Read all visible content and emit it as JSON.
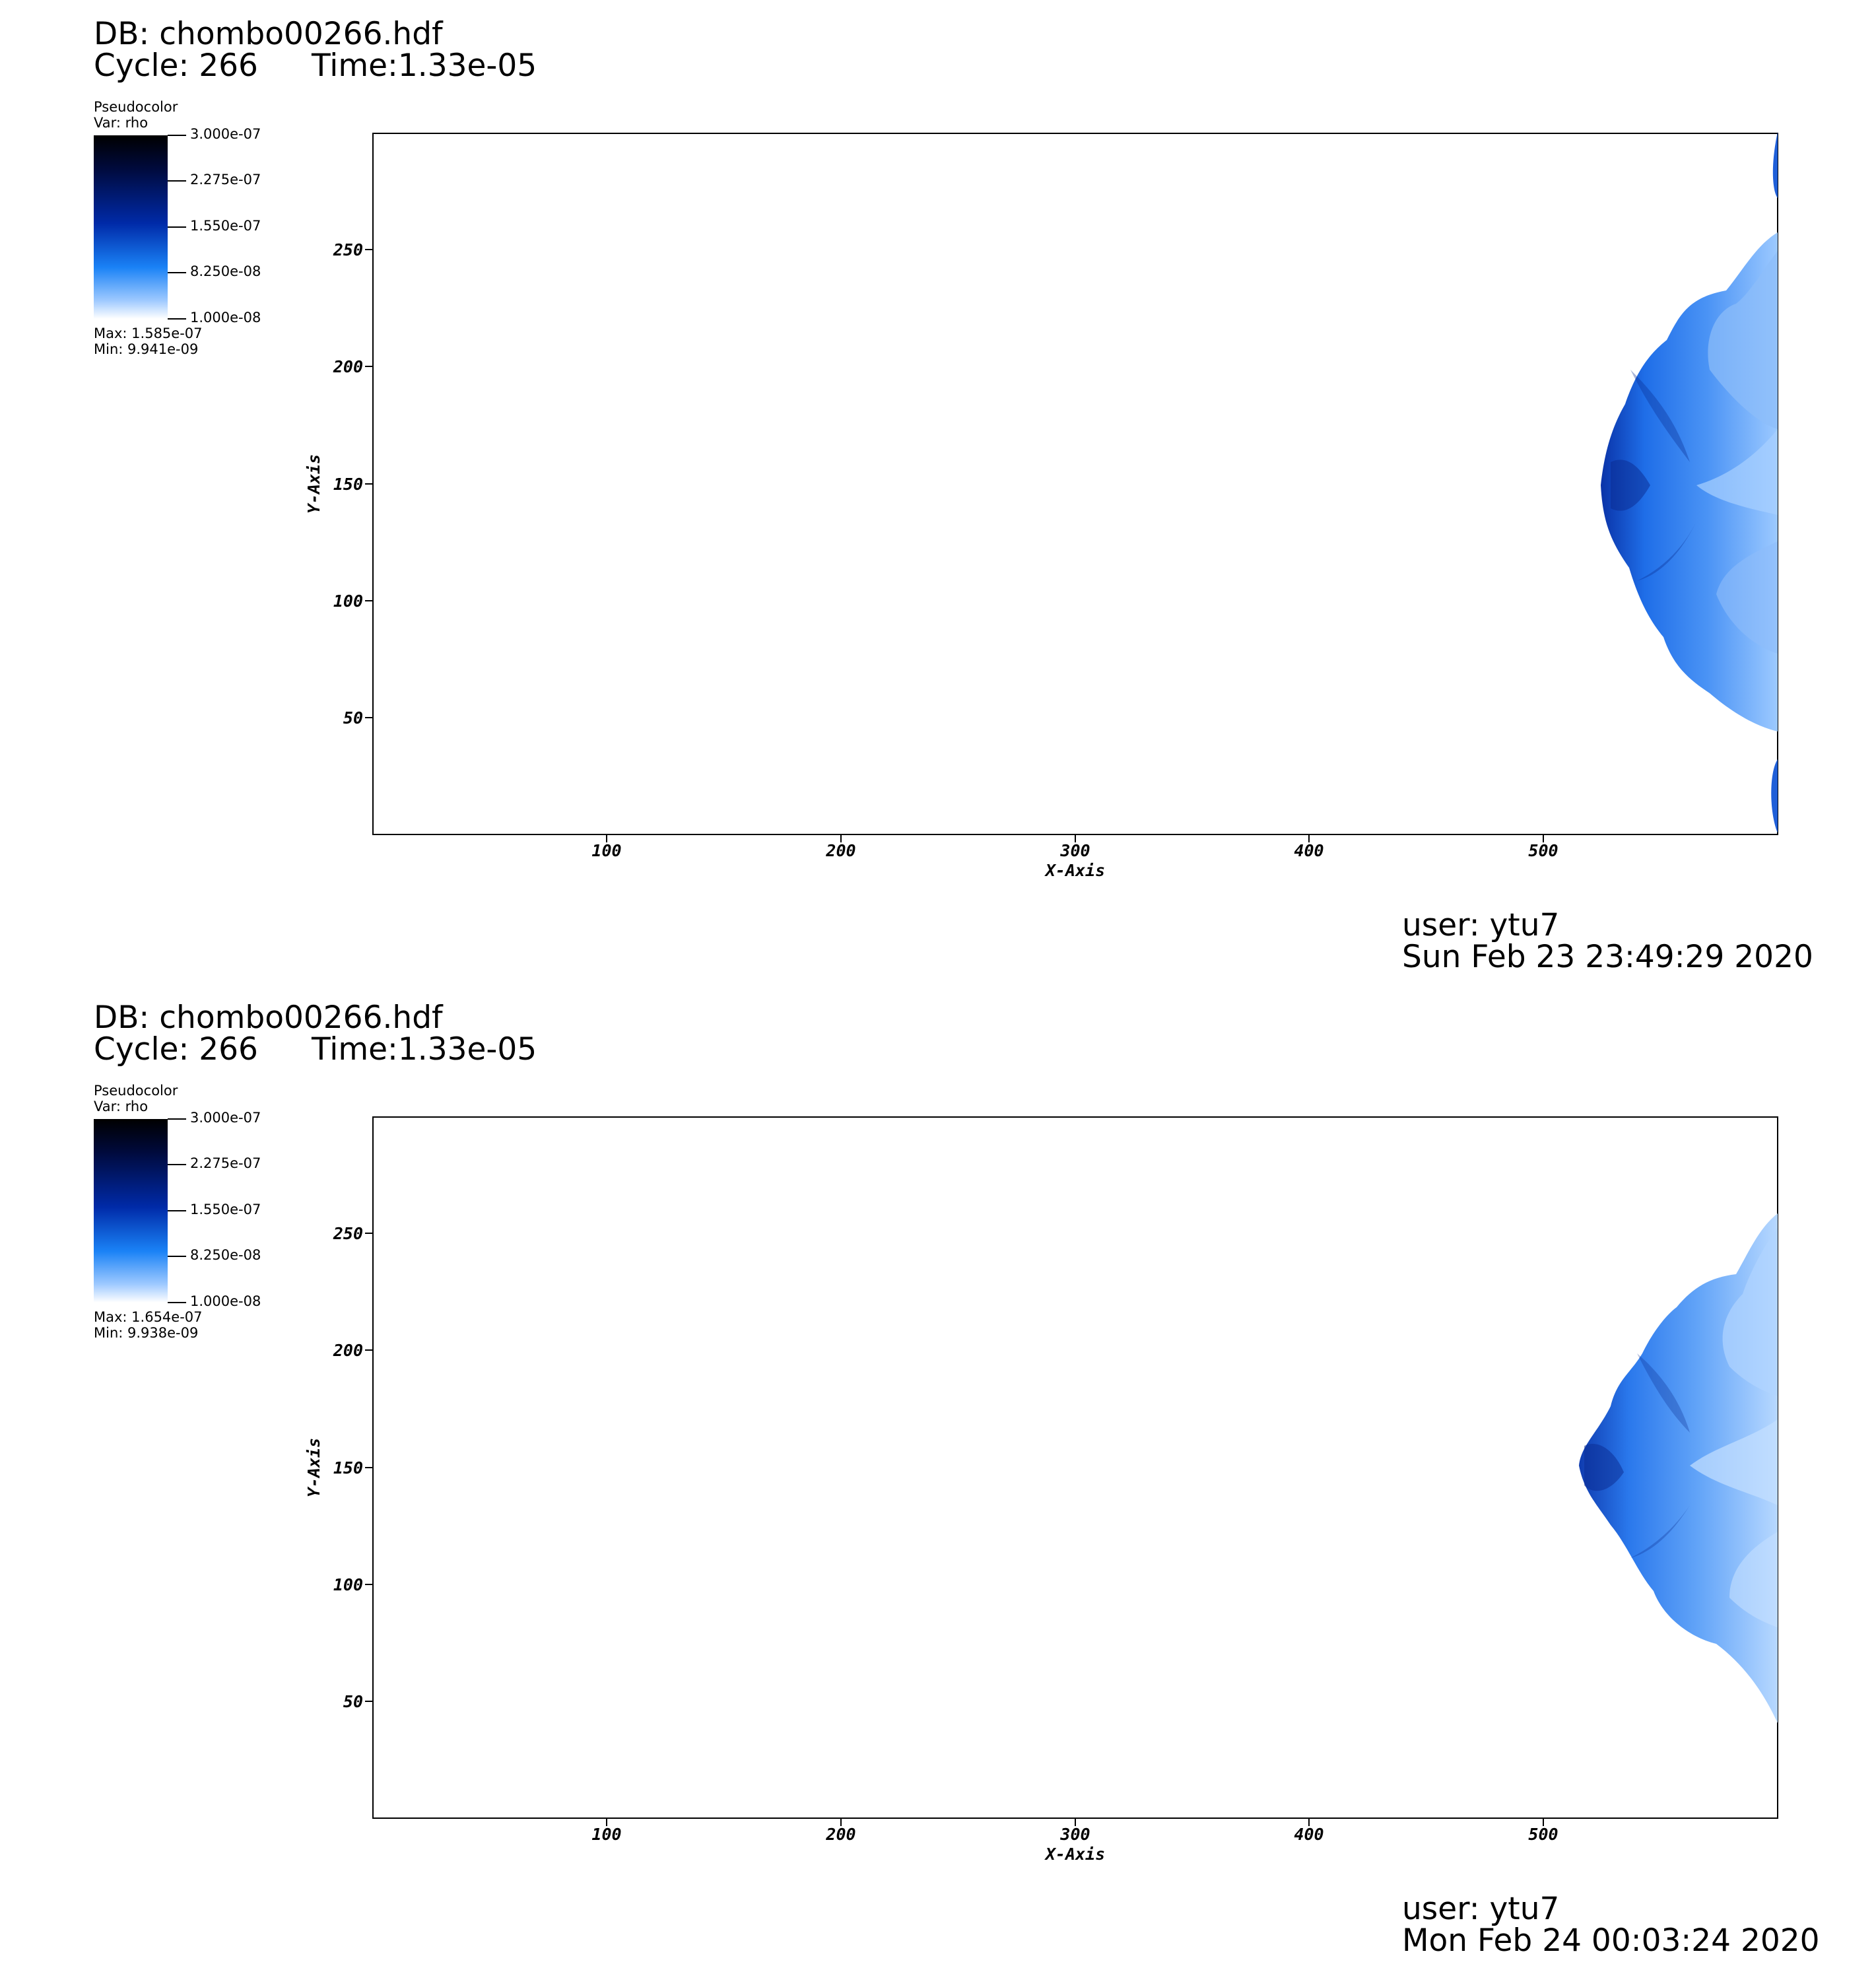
{
  "colors": {
    "plume_dark": "#0a2fa0",
    "plume_mid": "#1a6fe6",
    "plume_light": "#8fc3ff",
    "axis": "#000000"
  },
  "panels": [
    {
      "db": "DB: chombo00266.hdf",
      "cycle": "Cycle: 266",
      "time": "Time:1.33e-05",
      "legend": {
        "title": "Pseudocolor",
        "var": "Var: rho",
        "labels": [
          "3.000e-07",
          "2.275e-07",
          "1.550e-07",
          "8.250e-08",
          "1.000e-08"
        ],
        "max": "Max:  1.585e-07",
        "min": "Min:  9.941e-09"
      },
      "x_ticks": [
        "100",
        "200",
        "300",
        "400",
        "500"
      ],
      "y_ticks": [
        "250",
        "200",
        "150",
        "100",
        "50"
      ],
      "xlabel": "X-Axis",
      "ylabel": "Y-Axis",
      "user": "user: ytu7",
      "date": "Sun Feb 23 23:49:29 2020"
    },
    {
      "db": "DB: chombo00266.hdf",
      "cycle": "Cycle: 266",
      "time": "Time:1.33e-05",
      "legend": {
        "title": "Pseudocolor",
        "var": "Var: rho",
        "labels": [
          "3.000e-07",
          "2.275e-07",
          "1.550e-07",
          "8.250e-08",
          "1.000e-08"
        ],
        "max": "Max:  1.654e-07",
        "min": "Min:  9.938e-09"
      },
      "x_ticks": [
        "100",
        "200",
        "300",
        "400",
        "500"
      ],
      "y_ticks": [
        "250",
        "200",
        "150",
        "100",
        "50"
      ],
      "xlabel": "X-Axis",
      "ylabel": "Y-Axis",
      "user": "user: ytu7",
      "date": "Mon Feb 24 00:03:24 2020"
    }
  ]
}
